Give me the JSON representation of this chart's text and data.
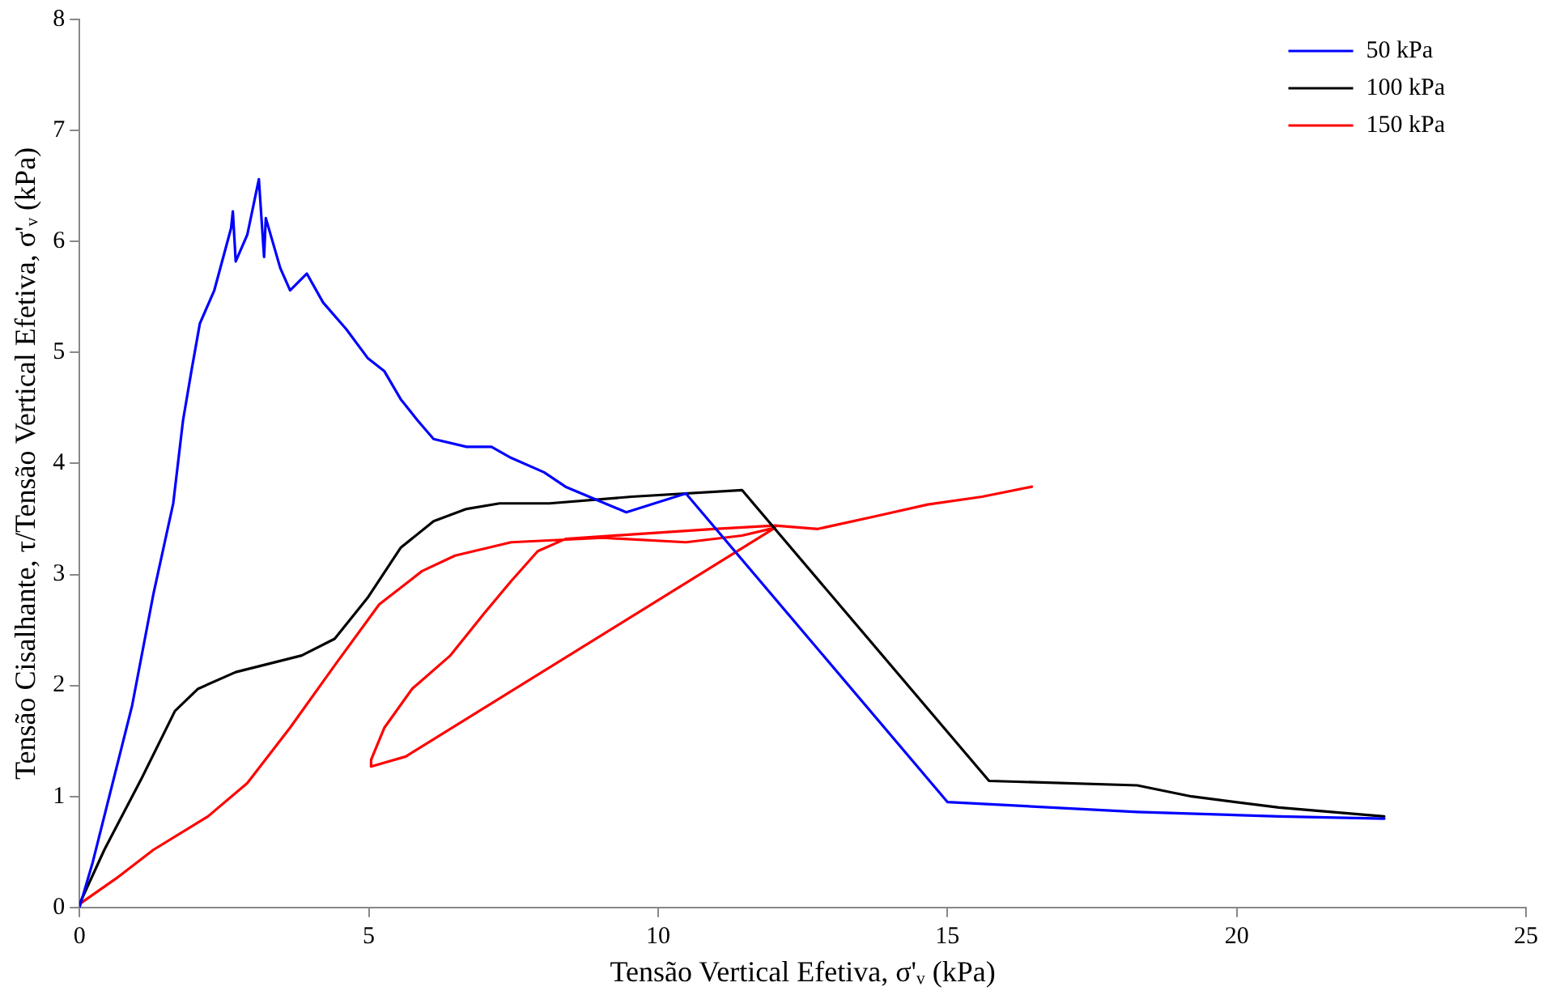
{
  "chart_data": {
    "type": "line",
    "xlabel": "Tensão Vertical Efetiva, σ'ᵥ (kPa)",
    "ylabel": "Tensão Cisalhante, τ/Tensão Vertical Efetiva, σ'ᵥ (kPa)",
    "xlim": [
      0,
      25
    ],
    "xticks": [
      0,
      5,
      10,
      15,
      20,
      25
    ],
    "ylim": [
      0,
      8
    ],
    "yticks": [
      0,
      1,
      2,
      3,
      4,
      5,
      6,
      7,
      8
    ],
    "grid": false,
    "legend": "top right",
    "marker": "none",
    "line_style": "solid",
    "series": [
      {
        "name": "50 kPa",
        "color": "#0000ff",
        "x": [
          0,
          0.23,
          0.91,
          1.28,
          1.62,
          1.79,
          1.94,
          2.08,
          2.33,
          2.62,
          2.65,
          2.7,
          2.9,
          3.1,
          3.19,
          3.22,
          3.47,
          3.64,
          3.93,
          4.21,
          4.61,
          4.98,
          5.27,
          5.55,
          5.84,
          6.12,
          6.69,
          7.12,
          7.46,
          8.03,
          8.4,
          9.45,
          10.48,
          15.0,
          18.28,
          20.73,
          22.55
        ],
        "values": [
          0,
          0.41,
          1.82,
          2.83,
          3.64,
          4.39,
          4.85,
          5.26,
          5.56,
          6.12,
          6.27,
          5.82,
          6.06,
          6.56,
          5.86,
          6.21,
          5.76,
          5.56,
          5.71,
          5.45,
          5.21,
          4.95,
          4.83,
          4.58,
          4.39,
          4.22,
          4.15,
          4.15,
          4.05,
          3.92,
          3.79,
          3.56,
          3.73,
          0.95,
          0.86,
          0.82,
          0.8
        ]
      },
      {
        "name": "100 kPa",
        "color": "#000000",
        "x": [
          0,
          0.43,
          1.08,
          1.65,
          2.05,
          2.7,
          3.84,
          4.41,
          4.98,
          5.55,
          6.12,
          6.69,
          7.26,
          8.12,
          9.54,
          11.45,
          15.72,
          18.28,
          19.22,
          20.73,
          22.55
        ],
        "values": [
          0.03,
          0.52,
          1.17,
          1.77,
          1.97,
          2.12,
          2.27,
          2.42,
          2.79,
          3.24,
          3.48,
          3.59,
          3.64,
          3.64,
          3.7,
          3.76,
          1.14,
          1.1,
          1.0,
          0.9,
          0.82
        ]
      },
      {
        "name": "150 kPa",
        "color": "#ff0000",
        "x": [
          0,
          0.63,
          1.28,
          2.22,
          2.9,
          3.64,
          4.41,
          5.18,
          5.92,
          6.49,
          7.46,
          9.05,
          10.48,
          11.45,
          12.02,
          5.64,
          5.04,
          5.04,
          5.27,
          5.75,
          6.41,
          6.98,
          7.46,
          7.92,
          8.4,
          9.54,
          10.96,
          12.02,
          12.76,
          13.72,
          14.66,
          15.6,
          16.46
        ],
        "values": [
          0.03,
          0.26,
          0.52,
          0.82,
          1.12,
          1.62,
          2.18,
          2.73,
          3.03,
          3.17,
          3.29,
          3.33,
          3.29,
          3.35,
          3.42,
          1.36,
          1.27,
          1.33,
          1.62,
          1.97,
          2.27,
          2.64,
          2.94,
          3.21,
          3.32,
          3.36,
          3.41,
          3.44,
          3.41,
          3.52,
          3.63,
          3.7,
          3.79
        ]
      }
    ]
  }
}
